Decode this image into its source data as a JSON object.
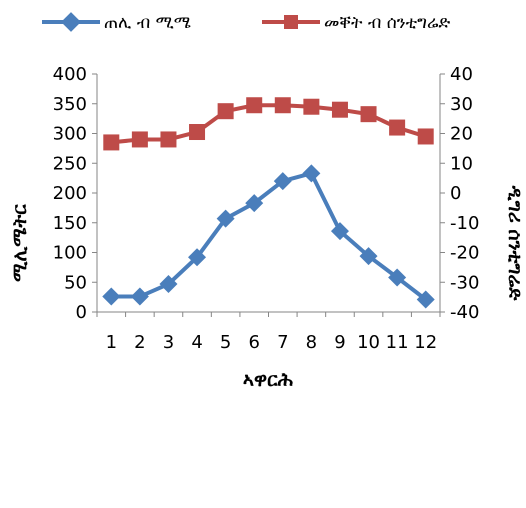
{
  "chart_data": {
    "type": "line",
    "categories": [
      "1",
      "2",
      "3",
      "4",
      "5",
      "6",
      "7",
      "8",
      "9",
      "10",
      "11",
      "12"
    ],
    "series": [
      {
        "name": "ጠሊ ብ ሚሜ",
        "axis": "left",
        "color": "#4a7ebb",
        "marker": "diamond",
        "values": [
          26,
          26,
          47,
          92,
          157,
          183,
          220,
          233,
          136,
          94,
          58,
          21
        ]
      },
      {
        "name": "መቐት ብ ሰንቲግሬድ",
        "axis": "right",
        "color": "#be4b48",
        "marker": "square",
        "values": [
          17,
          18,
          18,
          20.5,
          27.5,
          29.5,
          29.5,
          29,
          28,
          26.5,
          22,
          19
        ]
      }
    ],
    "xlabel": "ኣዋርሕ",
    "ylabel": "ሚሊሜትር",
    "y2label": "ዲግሪ ሰንቲግሬድ",
    "ylim": [
      0,
      400
    ],
    "y2lim": [
      -40,
      40
    ],
    "yticks": [
      "0",
      "50",
      "100",
      "150",
      "200",
      "250",
      "300",
      "350",
      "400"
    ],
    "y2ticks": [
      "-40",
      "-30",
      "-20",
      "-10",
      "0",
      "10",
      "20",
      "30",
      "40"
    ],
    "grid": false,
    "legend": "top"
  }
}
